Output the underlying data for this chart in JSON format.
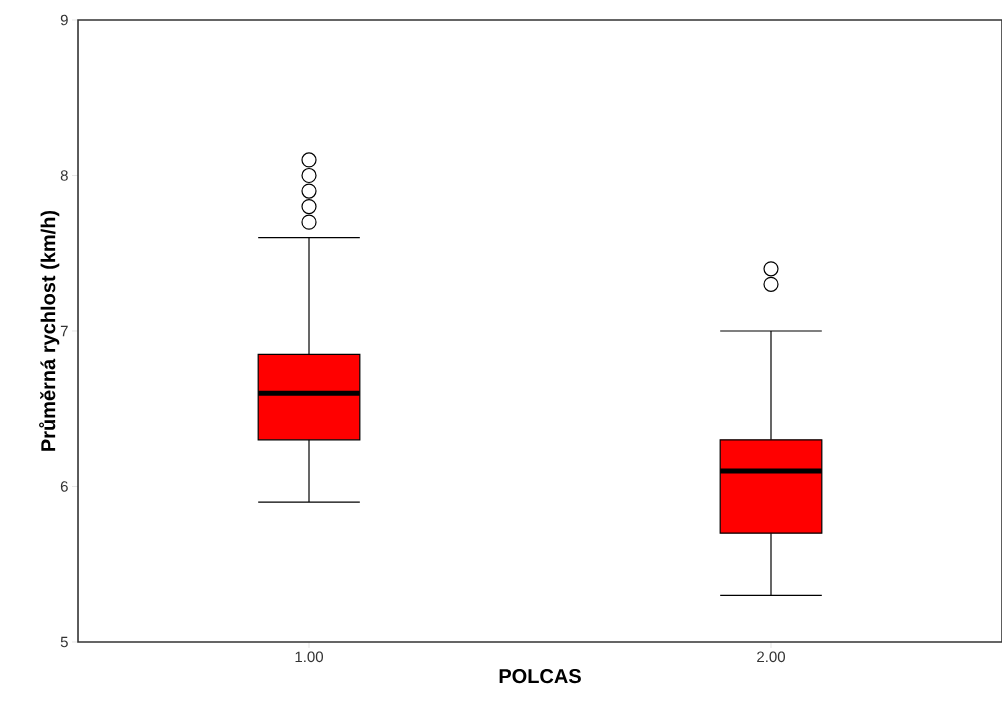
{
  "chart_data": {
    "type": "box",
    "xlabel": "POLCAS",
    "ylabel": "Průměrná rychlost (km/h)",
    "categories": [
      "1.00",
      "2.00"
    ],
    "color": "#ff0000",
    "boxes": [
      {
        "low": 5.9,
        "q1": 6.3,
        "median": 6.6,
        "q3": 6.85,
        "high": 7.6,
        "outliers": [
          8.1,
          8.0,
          7.9,
          7.8,
          7.7
        ]
      },
      {
        "low": 5.3,
        "q1": 5.7,
        "median": 6.1,
        "q3": 6.3,
        "high": 7.0,
        "outliers": [
          7.4,
          7.3
        ]
      }
    ],
    "ylim": [
      5,
      9
    ],
    "yticks": [
      5,
      6,
      7,
      8,
      9
    ]
  }
}
